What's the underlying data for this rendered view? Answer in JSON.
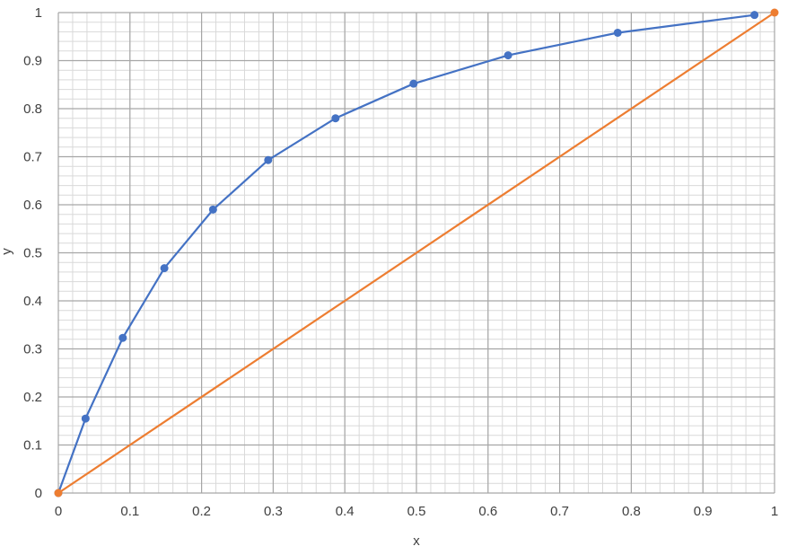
{
  "chart_data": {
    "type": "scatter",
    "xlabel": "x",
    "ylabel": "y",
    "xlim": [
      0,
      1
    ],
    "ylim": [
      0,
      1
    ],
    "x_ticks": [
      "0",
      "0.1",
      "0.2",
      "0.3",
      "0.4",
      "0.5",
      "0.6",
      "0.7",
      "0.8",
      "0.9",
      "1"
    ],
    "y_ticks": [
      "0",
      "0.1",
      "0.2",
      "0.3",
      "0.4",
      "0.5",
      "0.6",
      "0.7",
      "0.8",
      "0.9",
      "1"
    ],
    "major_grid": true,
    "minor_grid": true,
    "minor_grid_step": 0.02,
    "legend": "none",
    "series": [
      {
        "color": "#4472C4",
        "points": [
          [
            0,
            0
          ],
          [
            0.038,
            0.155
          ],
          [
            0.09,
            0.323
          ],
          [
            0.148,
            0.468
          ],
          [
            0.216,
            0.59
          ],
          [
            0.293,
            0.693
          ],
          [
            0.387,
            0.78
          ],
          [
            0.496,
            0.852
          ],
          [
            0.628,
            0.911
          ],
          [
            0.781,
            0.958
          ],
          [
            0.972,
            0.995
          ]
        ]
      },
      {
        "color": "#ED7D31",
        "points": [
          [
            0,
            0
          ],
          [
            1,
            1
          ]
        ]
      }
    ]
  }
}
